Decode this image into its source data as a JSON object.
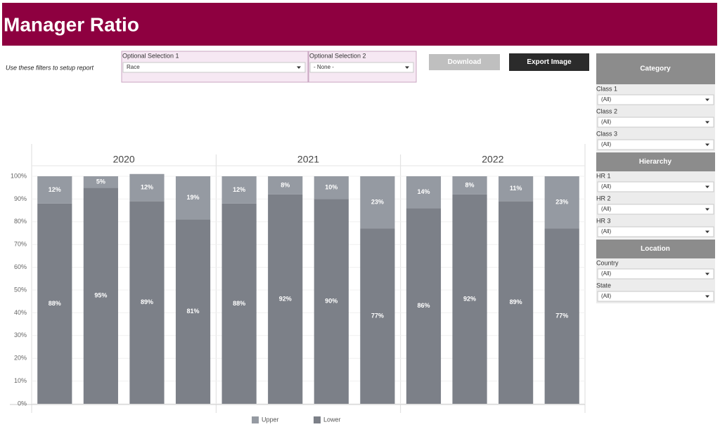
{
  "header": {
    "title": "Manager Ratio"
  },
  "filters": {
    "note": "Use these filters to setup report",
    "selections": [
      {
        "label": "Optional Selection 1",
        "value": "Race"
      },
      {
        "label": "Optional Selection 2",
        "value": "- None -"
      }
    ]
  },
  "buttons": [
    "Download",
    "Export Image"
  ],
  "sidebar": [
    {
      "title": "Category",
      "fields": [
        {
          "label": "Class 1",
          "value": "(All)"
        },
        {
          "label": "Class 2",
          "value": "(All)"
        },
        {
          "label": "Class 3",
          "value": "(All)"
        }
      ]
    },
    {
      "title": "Hierarchy",
      "fields": [
        {
          "label": "HR 1",
          "value": "(All)"
        },
        {
          "label": "HR 2",
          "value": "(All)"
        },
        {
          "label": "HR 3",
          "value": "(All)"
        }
      ]
    },
    {
      "title": "Location",
      "fields": [
        {
          "label": "Country",
          "value": "(All)"
        },
        {
          "label": "State",
          "value": "(All)"
        }
      ]
    }
  ],
  "chart_data": {
    "type": "bar",
    "stacked": true,
    "facets": [
      "2020",
      "2021",
      "2022"
    ],
    "categories": [
      null,
      null,
      null,
      null,
      null,
      null,
      null,
      null,
      null,
      null,
      null,
      null
    ],
    "series": [
      {
        "name": "Upper",
        "color": "#959aa2",
        "values": [
          12,
          5,
          12,
          19,
          12,
          8,
          10,
          23,
          14,
          8,
          11,
          23
        ],
        "value_labels": [
          "12%",
          "5%",
          "12%",
          "19%",
          "12%",
          "8%",
          "10%",
          "23%",
          "14%",
          "8%",
          "11%",
          "23%"
        ]
      },
      {
        "name": "Lower",
        "color": "#7c8088",
        "values": [
          88,
          95,
          89,
          81,
          88,
          92,
          90,
          77,
          86,
          92,
          89,
          77
        ],
        "value_labels": [
          "88%",
          "95%",
          "89%",
          "81%",
          "88%",
          "92%",
          "90%",
          "77%",
          "86%",
          "92%",
          "89%",
          "77%"
        ]
      }
    ],
    "ylim": [
      0,
      100
    ],
    "yticks": [
      {
        "value": 0,
        "label": "0%"
      },
      {
        "value": 10,
        "label": "10%"
      },
      {
        "value": 20,
        "label": "20%"
      },
      {
        "value": 30,
        "label": "30%"
      },
      {
        "value": 40,
        "label": "40%"
      },
      {
        "value": 50,
        "label": "50%"
      },
      {
        "value": 60,
        "label": "60%"
      },
      {
        "value": 70,
        "label": "70%"
      },
      {
        "value": 80,
        "label": "80%"
      },
      {
        "value": 90,
        "label": "90%"
      },
      {
        "value": 100,
        "label": "100%"
      }
    ],
    "grid": true,
    "legend": "bottom"
  }
}
